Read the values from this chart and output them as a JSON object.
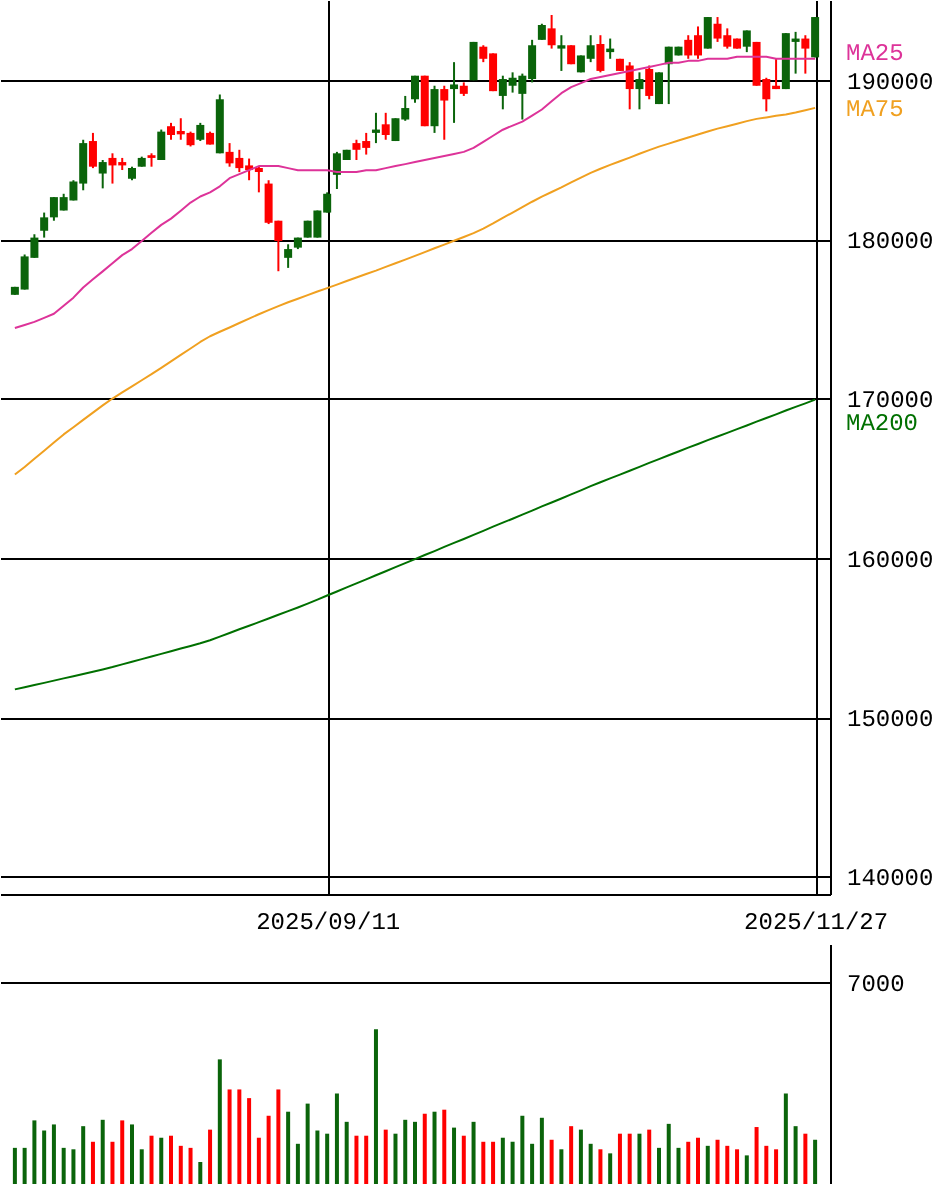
{
  "chart_data": [
    {
      "type": "candlestick",
      "ylim": [
        138900,
        195000
      ],
      "yticks": [
        140000,
        150000,
        160000,
        170000,
        180000,
        190000
      ],
      "grid": true,
      "categories": [
        null,
        null,
        null,
        null,
        null,
        null,
        null,
        null,
        null,
        null,
        null,
        null,
        null,
        null,
        null,
        null,
        null,
        null,
        null,
        null,
        null,
        null,
        null,
        null,
        null,
        null,
        null,
        null,
        null,
        null,
        null,
        null,
        "2025/09/11",
        null,
        null,
        null,
        null,
        null,
        null,
        null,
        null,
        null,
        null,
        null,
        null,
        null,
        null,
        null,
        null,
        null,
        null,
        null,
        null,
        null,
        null,
        null,
        null,
        null,
        null,
        null,
        null,
        null,
        null,
        null,
        null,
        null,
        null,
        null,
        null,
        null,
        null,
        null,
        null,
        null,
        null,
        null,
        null,
        null,
        null,
        null,
        null,
        null,
        "2025/11/27"
      ],
      "ohlc": [
        [
          176500,
          177000,
          176500,
          177000
        ],
        [
          176830,
          179030,
          176830,
          178910
        ],
        [
          178820,
          180300,
          178820,
          180090
        ],
        [
          180520,
          181660,
          180090,
          181360
        ],
        [
          181360,
          182630,
          181150,
          182630
        ],
        [
          181790,
          182840,
          181790,
          182630
        ],
        [
          182420,
          183690,
          182420,
          183610
        ],
        [
          183480,
          186230,
          183060,
          186020
        ],
        [
          186150,
          186660,
          184450,
          184540
        ],
        [
          184110,
          184960,
          183180,
          184830
        ],
        [
          185090,
          185380,
          183480,
          184620
        ],
        [
          184830,
          185090,
          184330,
          184620
        ],
        [
          183780,
          184540,
          183690,
          184450
        ],
        [
          184540,
          185170,
          184540,
          185090
        ],
        [
          185260,
          185380,
          184540,
          185090
        ],
        [
          184960,
          186870,
          184960,
          186740
        ],
        [
          187080,
          187290,
          186230,
          186530
        ],
        [
          186780,
          187580,
          186230,
          186570
        ],
        [
          186660,
          186740,
          185810,
          185890
        ],
        [
          186230,
          187290,
          186150,
          187160
        ],
        [
          186660,
          186740,
          185930,
          185930
        ],
        [
          185380,
          189070,
          185380,
          188770
        ],
        [
          185470,
          186020,
          184540,
          184750
        ],
        [
          185090,
          185600,
          184200,
          184450
        ],
        [
          184620,
          185050,
          183690,
          184330
        ],
        [
          184450,
          184540,
          182930,
          184200
        ],
        [
          183480,
          183690,
          180940,
          181020
        ],
        [
          181150,
          181150,
          177980,
          179880
        ],
        [
          178820,
          179670,
          178190,
          179370
        ],
        [
          179460,
          180090,
          179370,
          180090
        ],
        [
          180090,
          181150,
          180090,
          181150
        ],
        [
          180090,
          181790,
          180090,
          181790
        ],
        [
          181660,
          182930,
          181660,
          182840
        ],
        [
          184030,
          185470,
          183140,
          185380
        ],
        [
          184960,
          185600,
          184960,
          185600
        ],
        [
          186020,
          186230,
          184960,
          185600
        ],
        [
          186150,
          186660,
          185300,
          185720
        ],
        [
          186660,
          187920,
          186020,
          186870
        ],
        [
          187200,
          187920,
          186230,
          186530
        ],
        [
          186150,
          187580,
          186150,
          187580
        ],
        [
          187500,
          188980,
          187420,
          188220
        ],
        [
          188770,
          190250,
          188560,
          190250
        ],
        [
          190250,
          190250,
          187080,
          187080
        ],
        [
          187080,
          189620,
          186660,
          189410
        ],
        [
          189410,
          189620,
          186230,
          188690
        ],
        [
          189410,
          191100,
          187290,
          189700
        ],
        [
          189620,
          189830,
          188980,
          189110
        ],
        [
          189960,
          192370,
          189960,
          192370
        ],
        [
          192070,
          192160,
          191100,
          191310
        ],
        [
          191650,
          191650,
          189280,
          189280
        ],
        [
          188980,
          190250,
          188140,
          190040
        ],
        [
          189620,
          190460,
          189190,
          190120
        ],
        [
          189110,
          190380,
          187500,
          190250
        ],
        [
          190040,
          192500,
          189830,
          192160
        ],
        [
          192500,
          193510,
          192500,
          193430
        ],
        [
          193220,
          194060,
          191950,
          192160
        ],
        [
          191950,
          192790,
          190550,
          192160
        ],
        [
          192160,
          192160,
          190970,
          190970
        ],
        [
          190460,
          191520,
          190460,
          191520
        ],
        [
          191310,
          192790,
          191100,
          192160
        ],
        [
          192240,
          192790,
          190460,
          190550
        ],
        [
          191730,
          192580,
          191310,
          191950
        ],
        [
          191310,
          191310,
          190550,
          190550
        ],
        [
          190890,
          191100,
          188140,
          189410
        ],
        [
          189410,
          190460,
          188140,
          190040
        ],
        [
          190670,
          190890,
          188770,
          188980
        ],
        [
          188470,
          190460,
          188470,
          190460
        ],
        [
          190970,
          192070,
          188470,
          192070
        ],
        [
          191520,
          192070,
          191520,
          192070
        ],
        [
          192500,
          192790,
          191310,
          191520
        ],
        [
          192790,
          193340,
          191310,
          191520
        ],
        [
          191950,
          193930,
          191950,
          193930
        ],
        [
          193510,
          193930,
          192370,
          192580
        ],
        [
          192790,
          193220,
          191950,
          192070
        ],
        [
          192580,
          192580,
          191950,
          191950
        ],
        [
          192070,
          193090,
          191730,
          193090
        ],
        [
          192370,
          192370,
          189620,
          189620
        ],
        [
          190040,
          190120,
          188010,
          188770
        ],
        [
          189620,
          191310,
          189410,
          189410
        ],
        [
          189410,
          192920,
          189410,
          192920
        ],
        [
          192370,
          193000,
          190380,
          192580
        ],
        [
          192580,
          192790,
          190380,
          191950
        ],
        [
          191400,
          193930,
          191400,
          193930
        ]
      ],
      "colors": [
        "#0a640a",
        "#0a640a",
        "#0a640a",
        "#0a640a",
        "#0a640a",
        "#0a640a",
        "#0a640a",
        "#0a640a",
        "#ff0000",
        "#0a640a",
        "#ff0000",
        "#ff0000",
        "#0a640a",
        "#0a640a",
        "#ff0000",
        "#0a640a",
        "#ff0000",
        "#ff0000",
        "#ff0000",
        "#0a640a",
        "#ff0000",
        "#0a640a",
        "#ff0000",
        "#ff0000",
        "#ff0000",
        "#ff0000",
        "#ff0000",
        "#ff0000",
        "#0a640a",
        "#0a640a",
        "#0a640a",
        "#0a640a",
        "#0a640a",
        "#0a640a",
        "#0a640a",
        "#ff0000",
        "#ff0000",
        "#0a640a",
        "#ff0000",
        "#0a640a",
        "#0a640a",
        "#0a640a",
        "#ff0000",
        "#0a640a",
        "#ff0000",
        "#0a640a",
        "#ff0000",
        "#0a640a",
        "#ff0000",
        "#ff0000",
        "#0a640a",
        "#0a640a",
        "#0a640a",
        "#0a640a",
        "#0a640a",
        "#ff0000",
        "#0a640a",
        "#ff0000",
        "#0a640a",
        "#0a640a",
        "#ff0000",
        "#0a640a",
        "#ff0000",
        "#ff0000",
        "#0a640a",
        "#ff0000",
        "#0a640a",
        "#0a640a",
        "#0a640a",
        "#ff0000",
        "#ff0000",
        "#0a640a",
        "#ff0000",
        "#ff0000",
        "#ff0000",
        "#0a640a",
        "#ff0000",
        "#ff0000",
        "#ff0000",
        "#0a640a",
        "#0a640a",
        "#ff0000",
        "#0a640a"
      ],
      "series": [
        {
          "type": "line",
          "name": "MA25",
          "color": "#dd3399",
          "values": [
            174420,
            174610,
            174800,
            175050,
            175310,
            175820,
            176320,
            176960,
            177470,
            177970,
            178480,
            178990,
            179370,
            179880,
            180390,
            180890,
            181280,
            181780,
            182290,
            182670,
            182930,
            183310,
            183820,
            184070,
            184320,
            184580,
            184580,
            184580,
            184450,
            184320,
            184320,
            184320,
            184320,
            184200,
            184200,
            184200,
            184320,
            184320,
            184450,
            184580,
            184700,
            184830,
            184960,
            185080,
            185210,
            185340,
            185470,
            185720,
            186100,
            186480,
            186860,
            187120,
            187370,
            187750,
            188130,
            188640,
            189150,
            189530,
            189780,
            190040,
            190170,
            190290,
            190420,
            190550,
            190670,
            190800,
            190930,
            191060,
            191060,
            191180,
            191180,
            191310,
            191310,
            191310,
            191440,
            191440,
            191440,
            191440,
            191310,
            191310,
            191310,
            191310,
            191310
          ]
        },
        {
          "type": "line",
          "name": "MA75",
          "color": "#f0a020",
          "values": [
            165220,
            165700,
            166210,
            166710,
            167230,
            167740,
            168190,
            168650,
            169110,
            169560,
            169990,
            170380,
            170760,
            171140,
            171520,
            171920,
            172320,
            172730,
            173130,
            173540,
            173900,
            174180,
            174450,
            174730,
            175010,
            175280,
            175540,
            175790,
            176030,
            176250,
            176480,
            176710,
            176920,
            177140,
            177370,
            177590,
            177810,
            178020,
            178250,
            178480,
            178710,
            178940,
            179180,
            179420,
            179650,
            179890,
            180130,
            180370,
            180650,
            180980,
            181330,
            181660,
            182000,
            182340,
            182660,
            182950,
            183240,
            183550,
            183850,
            184150,
            184410,
            184650,
            184880,
            185110,
            185350,
            185580,
            185800,
            185990,
            186180,
            186370,
            186560,
            186750,
            186930,
            187080,
            187240,
            187400,
            187540,
            187630,
            187730,
            187820,
            187940,
            188080,
            188230
          ]
        },
        {
          "type": "line",
          "name": "MA200",
          "color": "#007000",
          "values": [
            151740,
            151880,
            152010,
            152150,
            152290,
            152430,
            152570,
            152710,
            152850,
            152990,
            153140,
            153310,
            153470,
            153640,
            153800,
            153970,
            154130,
            154300,
            154460,
            154630,
            154820,
            155050,
            155280,
            155510,
            155730,
            155960,
            156190,
            156420,
            156650,
            156880,
            157120,
            157370,
            157630,
            157880,
            158140,
            158390,
            158640,
            158900,
            159150,
            159410,
            159660,
            159910,
            160170,
            160420,
            160680,
            160930,
            161180,
            161440,
            161690,
            161950,
            162200,
            162450,
            162710,
            162960,
            163220,
            163470,
            163720,
            163980,
            164230,
            164490,
            164740,
            164980,
            165220,
            165460,
            165700,
            165950,
            166190,
            166430,
            166670,
            166910,
            167140,
            167380,
            167610,
            167840,
            168070,
            168300,
            168540,
            168770,
            169000,
            169240,
            169470,
            169690,
            169920
          ]
        }
      ]
    },
    {
      "type": "bar",
      "ylim": [
        0,
        8300
      ],
      "yticks": [
        7000
      ],
      "grid": "y",
      "tick_labels": "y",
      "categories": [
        null,
        null,
        null,
        null,
        null,
        null,
        null,
        null,
        null,
        null,
        null,
        null,
        null,
        null,
        null,
        null,
        null,
        null,
        null,
        null,
        null,
        null,
        null,
        null,
        null,
        null,
        null,
        null,
        null,
        null,
        null,
        null,
        null,
        null,
        null,
        null,
        null,
        null,
        null,
        null,
        null,
        null,
        null,
        null,
        null,
        null,
        null,
        null,
        null,
        null,
        null,
        null,
        null,
        null,
        null,
        null,
        null,
        null,
        null,
        null,
        null,
        null,
        null,
        null,
        null,
        null,
        null,
        null,
        null,
        null,
        null,
        null,
        null,
        null,
        null,
        null,
        null,
        null,
        null,
        null,
        null,
        null,
        null
      ],
      "values": [
        1250,
        1250,
        2200,
        1850,
        2060,
        1250,
        1200,
        2000,
        1460,
        2220,
        1460,
        2200,
        2060,
        1200,
        1670,
        1600,
        1670,
        1320,
        1250,
        760,
        1880,
        4310,
        3270,
        3270,
        2970,
        1600,
        2360,
        3270,
        2500,
        1390,
        2780,
        1850,
        1740,
        3130,
        2150,
        1670,
        1670,
        5350,
        1880,
        1740,
        2220,
        2150,
        2430,
        2500,
        2570,
        1950,
        1670,
        2150,
        1460,
        1460,
        1600,
        1460,
        2360,
        1390,
        2290,
        1530,
        1200,
        2000,
        1880,
        1390,
        1200,
        1060,
        1740,
        1740,
        1740,
        1880,
        1250,
        2080,
        1250,
        1460,
        1600,
        1320,
        1530,
        1320,
        1200,
        990,
        1970,
        1320,
        1200,
        3130,
        2000,
        1740,
        1530
      ],
      "colors": [
        "#0a640a",
        "#0a640a",
        "#0a640a",
        "#0a640a",
        "#0a640a",
        "#0a640a",
        "#0a640a",
        "#0a640a",
        "#ff0000",
        "#0a640a",
        "#ff0000",
        "#ff0000",
        "#0a640a",
        "#0a640a",
        "#ff0000",
        "#0a640a",
        "#ff0000",
        "#ff0000",
        "#ff0000",
        "#0a640a",
        "#ff0000",
        "#0a640a",
        "#ff0000",
        "#ff0000",
        "#ff0000",
        "#ff0000",
        "#ff0000",
        "#ff0000",
        "#0a640a",
        "#0a640a",
        "#0a640a",
        "#0a640a",
        "#0a640a",
        "#0a640a",
        "#0a640a",
        "#ff0000",
        "#ff0000",
        "#0a640a",
        "#ff0000",
        "#0a640a",
        "#0a640a",
        "#0a640a",
        "#ff0000",
        "#0a640a",
        "#ff0000",
        "#0a640a",
        "#ff0000",
        "#0a640a",
        "#ff0000",
        "#ff0000",
        "#0a640a",
        "#0a640a",
        "#0a640a",
        "#0a640a",
        "#0a640a",
        "#ff0000",
        "#0a640a",
        "#ff0000",
        "#0a640a",
        "#0a640a",
        "#ff0000",
        "#0a640a",
        "#ff0000",
        "#ff0000",
        "#0a640a",
        "#ff0000",
        "#0a640a",
        "#0a640a",
        "#0a640a",
        "#ff0000",
        "#ff0000",
        "#0a640a",
        "#ff0000",
        "#ff0000",
        "#ff0000",
        "#0a640a",
        "#ff0000",
        "#ff0000",
        "#ff0000",
        "#0a640a",
        "#0a640a",
        "#ff0000",
        "#0a640a"
      ]
    }
  ]
}
